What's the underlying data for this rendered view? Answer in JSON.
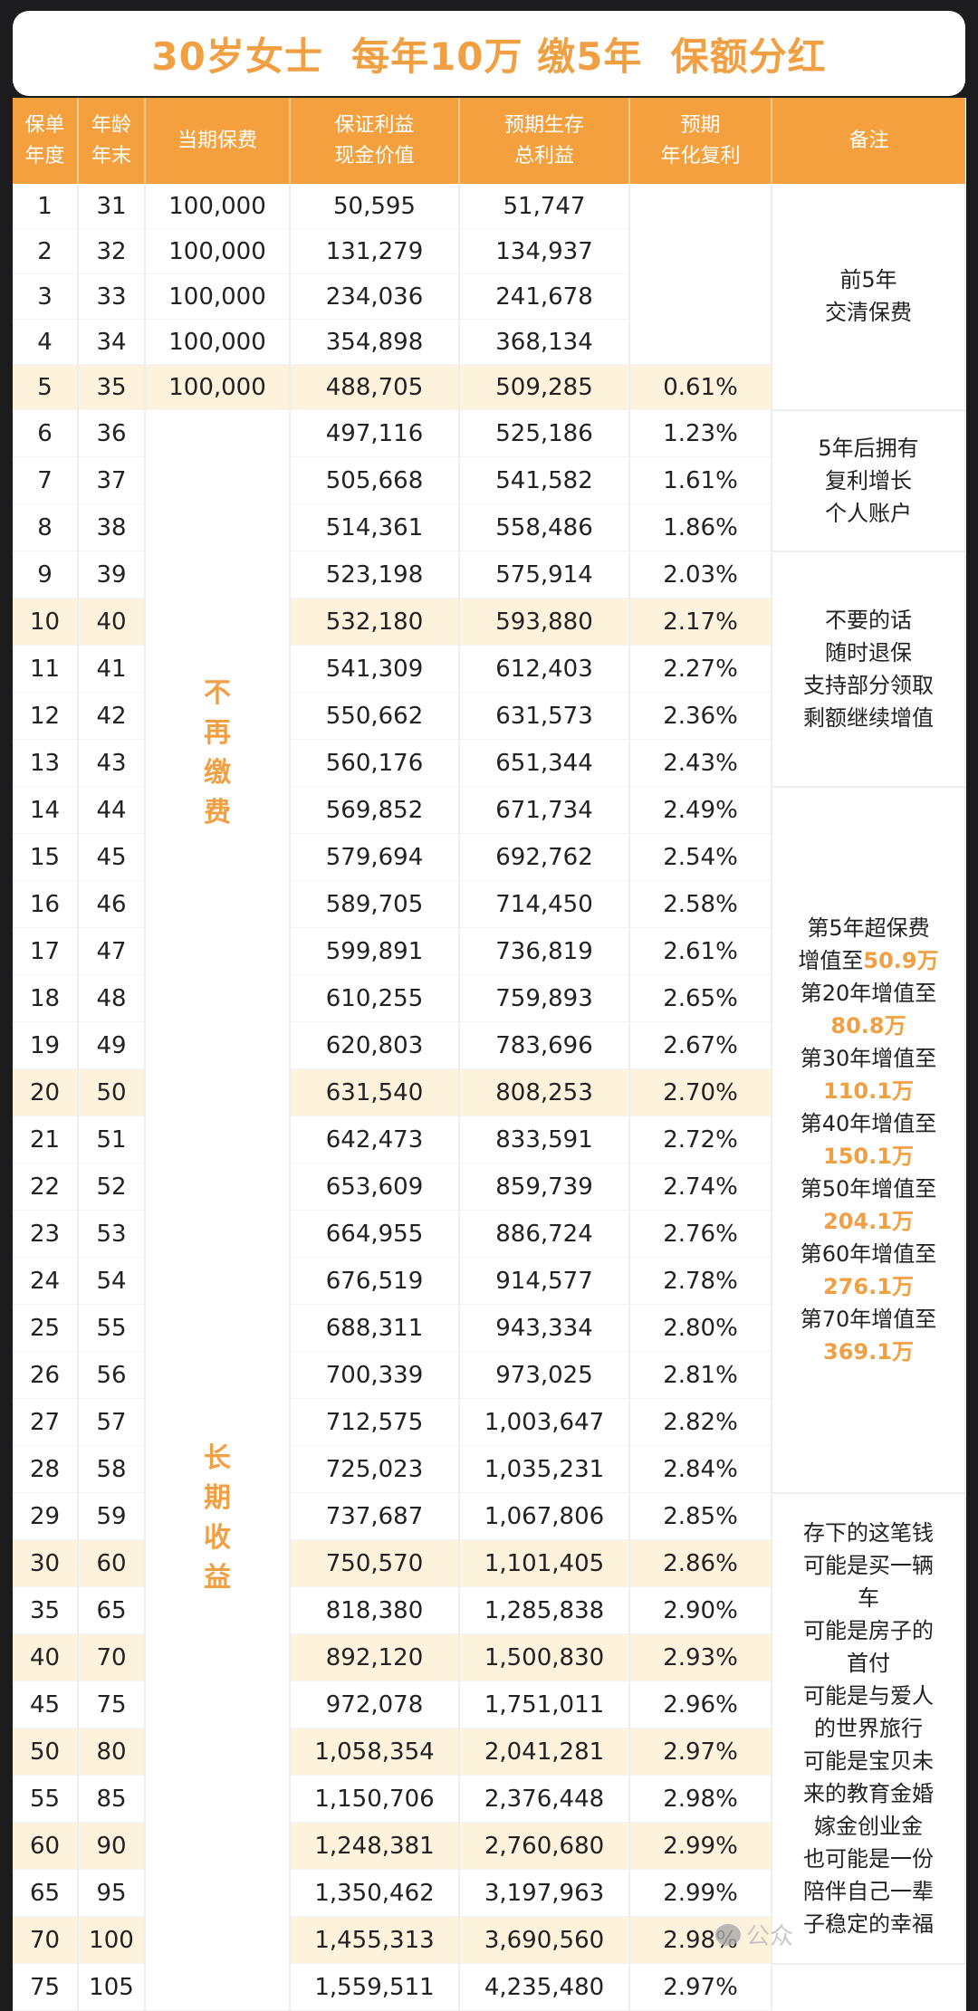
{
  "title": "30岁女士  每年10万 缴5年  保额分红",
  "headers": [
    "保单\n年度",
    "年龄\n年末",
    "当期保费",
    "保证利益\n现金价值",
    "预期生存\n总利益",
    "预期\n年化复利",
    "备注"
  ],
  "colors": {
    "accent": "#f5a03e",
    "highlight_row": "#fdf2dc",
    "accent_text": "#f0a043"
  },
  "rows": [
    {
      "year": "1",
      "age": "31",
      "premium": "100,000",
      "cash": "50,595",
      "total": "51,747",
      "rate": ""
    },
    {
      "year": "2",
      "age": "32",
      "premium": "100,000",
      "cash": "131,279",
      "total": "134,937",
      "rate": ""
    },
    {
      "year": "3",
      "age": "33",
      "premium": "100,000",
      "cash": "234,036",
      "total": "241,678",
      "rate": ""
    },
    {
      "year": "4",
      "age": "34",
      "premium": "100,000",
      "cash": "354,898",
      "total": "368,134",
      "rate": ""
    },
    {
      "year": "5",
      "age": "35",
      "premium": "100,000",
      "cash": "488,705",
      "total": "509,285",
      "rate": "0.61%",
      "highlight": true
    },
    {
      "year": "6",
      "age": "36",
      "cash": "497,116",
      "total": "525,186",
      "rate": "1.23%"
    },
    {
      "year": "7",
      "age": "37",
      "cash": "505,668",
      "total": "541,582",
      "rate": "1.61%"
    },
    {
      "year": "8",
      "age": "38",
      "cash": "514,361",
      "total": "558,486",
      "rate": "1.86%"
    },
    {
      "year": "9",
      "age": "39",
      "cash": "523,198",
      "total": "575,914",
      "rate": "2.03%"
    },
    {
      "year": "10",
      "age": "40",
      "cash": "532,180",
      "total": "593,880",
      "rate": "2.17%",
      "highlight": true
    },
    {
      "year": "11",
      "age": "41",
      "cash": "541,309",
      "total": "612,403",
      "rate": "2.27%"
    },
    {
      "year": "12",
      "age": "42",
      "cash": "550,662",
      "total": "631,573",
      "rate": "2.36%"
    },
    {
      "year": "13",
      "age": "43",
      "cash": "560,176",
      "total": "651,344",
      "rate": "2.43%"
    },
    {
      "year": "14",
      "age": "44",
      "cash": "569,852",
      "total": "671,734",
      "rate": "2.49%"
    },
    {
      "year": "15",
      "age": "45",
      "cash": "579,694",
      "total": "692,762",
      "rate": "2.54%"
    },
    {
      "year": "16",
      "age": "46",
      "cash": "589,705",
      "total": "714,450",
      "rate": "2.58%"
    },
    {
      "year": "17",
      "age": "47",
      "cash": "599,891",
      "total": "736,819",
      "rate": "2.61%"
    },
    {
      "year": "18",
      "age": "48",
      "cash": "610,255",
      "total": "759,893",
      "rate": "2.65%"
    },
    {
      "year": "19",
      "age": "49",
      "cash": "620,803",
      "total": "783,696",
      "rate": "2.67%"
    },
    {
      "year": "20",
      "age": "50",
      "cash": "631,540",
      "total": "808,253",
      "rate": "2.70%",
      "highlight": true
    },
    {
      "year": "21",
      "age": "51",
      "cash": "642,473",
      "total": "833,591",
      "rate": "2.72%"
    },
    {
      "year": "22",
      "age": "52",
      "cash": "653,609",
      "total": "859,739",
      "rate": "2.74%"
    },
    {
      "year": "23",
      "age": "53",
      "cash": "664,955",
      "total": "886,724",
      "rate": "2.76%"
    },
    {
      "year": "24",
      "age": "54",
      "cash": "676,519",
      "total": "914,577",
      "rate": "2.78%"
    },
    {
      "year": "25",
      "age": "55",
      "cash": "688,311",
      "total": "943,334",
      "rate": "2.80%"
    },
    {
      "year": "26",
      "age": "56",
      "cash": "700,339",
      "total": "973,025",
      "rate": "2.81%"
    },
    {
      "year": "27",
      "age": "57",
      "cash": "712,575",
      "total": "1,003,647",
      "rate": "2.82%"
    },
    {
      "year": "28",
      "age": "58",
      "cash": "725,023",
      "total": "1,035,231",
      "rate": "2.84%"
    },
    {
      "year": "29",
      "age": "59",
      "cash": "737,687",
      "total": "1,067,806",
      "rate": "2.85%"
    },
    {
      "year": "30",
      "age": "60",
      "cash": "750,570",
      "total": "1,101,405",
      "rate": "2.86%",
      "highlight": true
    },
    {
      "year": "35",
      "age": "65",
      "cash": "818,380",
      "total": "1,285,838",
      "rate": "2.90%"
    },
    {
      "year": "40",
      "age": "70",
      "cash": "892,120",
      "total": "1,500,830",
      "rate": "2.93%",
      "highlight": true
    },
    {
      "year": "45",
      "age": "75",
      "cash": "972,078",
      "total": "1,751,011",
      "rate": "2.96%"
    },
    {
      "year": "50",
      "age": "80",
      "cash": "1,058,354",
      "total": "2,041,281",
      "rate": "2.97%",
      "highlight": true
    },
    {
      "year": "55",
      "age": "85",
      "cash": "1,150,706",
      "total": "2,376,448",
      "rate": "2.98%"
    },
    {
      "year": "60",
      "age": "90",
      "cash": "1,248,381",
      "total": "2,760,680",
      "rate": "2.99%",
      "highlight": true
    },
    {
      "year": "65",
      "age": "95",
      "cash": "1,350,462",
      "total": "3,197,963",
      "rate": "2.99%"
    },
    {
      "year": "70",
      "age": "100",
      "cash": "1,455,313",
      "total": "3,690,560",
      "rate": "2.98%",
      "highlight": true
    },
    {
      "year": "75",
      "age": "105",
      "cash": "1,559,511",
      "total": "4,235,480",
      "rate": "2.97%"
    }
  ],
  "premium_notes": [
    "不再缴费",
    "长期收益"
  ],
  "remarks": [
    {
      "span": 5,
      "lines": [
        [
          {
            "t": "前5年"
          }
        ],
        [
          {
            "t": "交清保费"
          }
        ]
      ]
    },
    {
      "span": 3,
      "lines": [
        [
          {
            "t": "5年后拥有"
          }
        ],
        [
          {
            "t": "复利增长"
          }
        ],
        [
          {
            "t": "个人账户"
          }
        ]
      ]
    },
    {
      "span": 5,
      "lines": [
        [
          {
            "t": "不要的话"
          }
        ],
        [
          {
            "t": "随时退保"
          }
        ],
        [
          {
            "t": "支持部分领取"
          }
        ],
        [
          {
            "t": "剩额继续增值"
          }
        ]
      ]
    },
    {
      "span": 15,
      "lines": [
        [
          {
            "t": "第5年超保费"
          }
        ],
        [
          {
            "t": "增值至"
          },
          {
            "t": "50.9万",
            "hi": true
          }
        ],
        [
          {
            "t": "第20年增值至"
          }
        ],
        [
          {
            "t": "80.8万",
            "hi": true
          }
        ],
        [
          {
            "t": "第30年增值至"
          }
        ],
        [
          {
            "t": "110.1万",
            "hi": true
          }
        ],
        [
          {
            "t": "第40年增值至"
          }
        ],
        [
          {
            "t": "150.1万",
            "hi": true
          }
        ],
        [
          {
            "t": "第50年增值至"
          }
        ],
        [
          {
            "t": "204.1万",
            "hi": true
          }
        ],
        [
          {
            "t": "第60年增值至"
          }
        ],
        [
          {
            "t": "276.1万",
            "hi": true
          }
        ],
        [
          {
            "t": "第70年增值至"
          }
        ],
        [
          {
            "t": "369.1万",
            "hi": true
          }
        ]
      ]
    },
    {
      "span": 10,
      "lines": [
        [
          {
            "t": "存下的这笔钱"
          }
        ],
        [
          {
            "t": "可能是买一辆"
          }
        ],
        [
          {
            "t": "车"
          }
        ],
        [
          {
            "t": "可能是房子的"
          }
        ],
        [
          {
            "t": "首付"
          }
        ],
        [
          {
            "t": "可能是与爱人"
          }
        ],
        [
          {
            "t": "的世界旅行"
          }
        ],
        [
          {
            "t": "可能是宝贝未"
          }
        ],
        [
          {
            "t": "来的教育金婚"
          }
        ],
        [
          {
            "t": "嫁金创业金"
          }
        ],
        [
          {
            "t": "也可能是一份"
          }
        ],
        [
          {
            "t": "陪伴自己一辈"
          }
        ],
        [
          {
            "t": "子稳定的幸福"
          }
        ]
      ]
    }
  ],
  "watermark": "公众"
}
